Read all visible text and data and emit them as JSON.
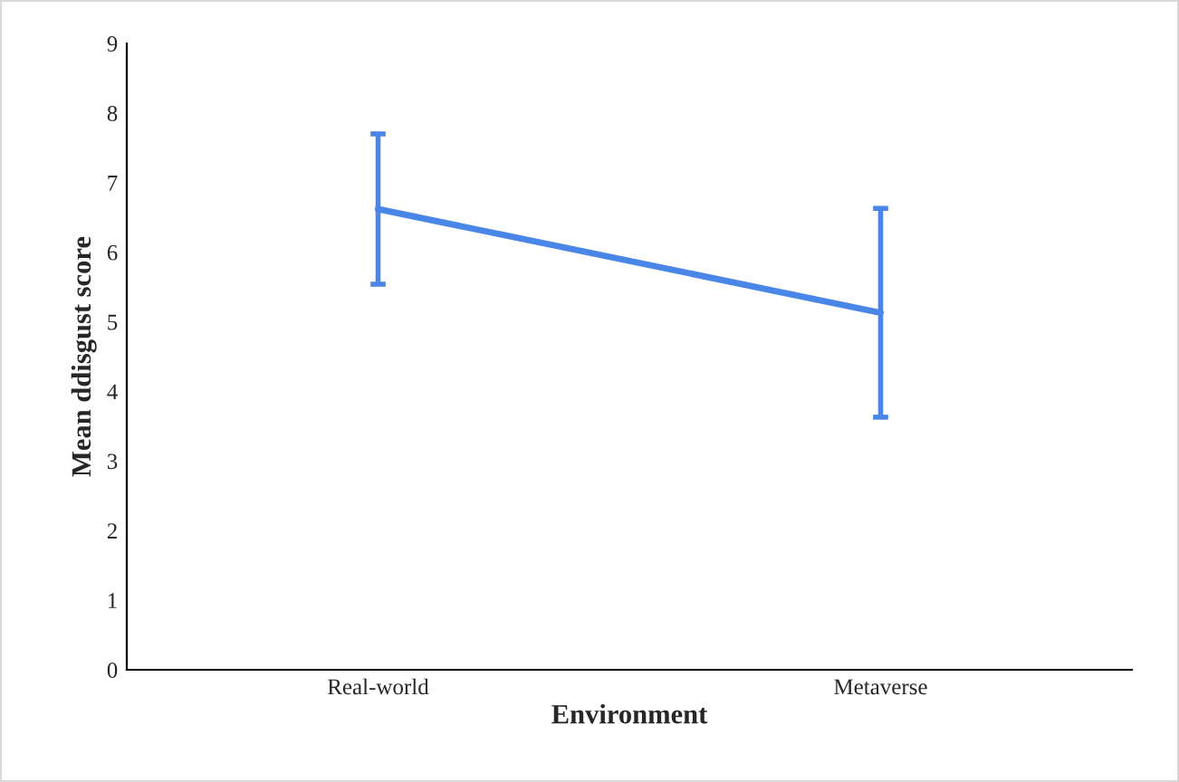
{
  "chart_data": {
    "type": "line",
    "xlabel": "Environment",
    "ylabel": "Mean ddisgust score",
    "categories": [
      "Real-world",
      "Metaverse"
    ],
    "series": [
      {
        "color": "#4a86e8",
        "values": [
          6.62,
          5.13
        ],
        "errors": [
          1.08,
          1.5
        ]
      }
    ],
    "ylim": [
      0,
      9
    ],
    "yticks": [
      0,
      1,
      2,
      3,
      4,
      5,
      6,
      7,
      8,
      9
    ],
    "grid": false,
    "legend": false,
    "marker": "none",
    "line_style": "solid"
  }
}
